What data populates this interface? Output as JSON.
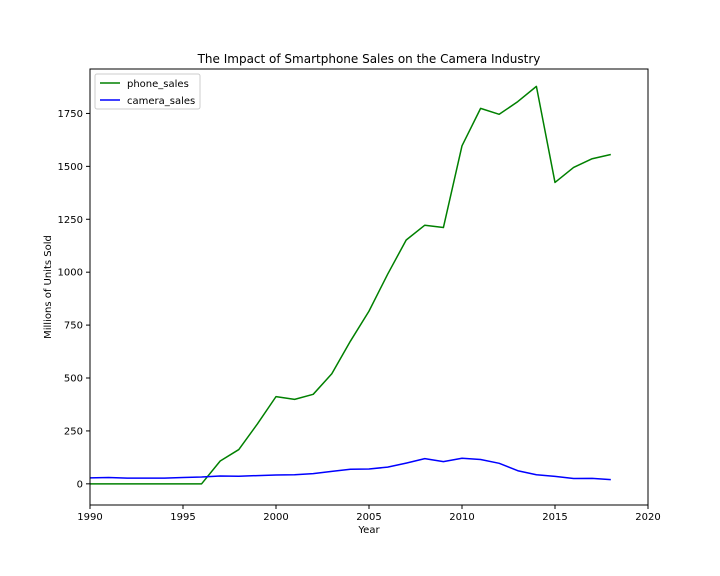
{
  "chart_data": {
    "type": "line",
    "title": "The Impact of Smartphone Sales on the Camera Industry",
    "xlabel": "Year",
    "ylabel": "Millions of Units Sold",
    "xlim": [
      1990,
      2020
    ],
    "ylim": [
      -100,
      1960
    ],
    "x_ticks": [
      1990,
      1995,
      2000,
      2005,
      2010,
      2015,
      2020
    ],
    "y_ticks": [
      0,
      250,
      500,
      750,
      1000,
      1250,
      1500,
      1750
    ],
    "grid": false,
    "legend_position": "upper-left",
    "x": [
      1990,
      1991,
      1992,
      1993,
      1994,
      1995,
      1996,
      1997,
      1998,
      1999,
      2000,
      2001,
      2002,
      2003,
      2004,
      2005,
      2006,
      2007,
      2008,
      2009,
      2010,
      2011,
      2012,
      2013,
      2014,
      2015,
      2016,
      2017,
      2018
    ],
    "series": [
      {
        "name": "phone_sales",
        "color": "#008000",
        "values": [
          0,
          0,
          0,
          0,
          0,
          0,
          0,
          108,
          162,
          283,
          412,
          399,
          423,
          520,
          674,
          816,
          990,
          1152,
          1222,
          1211,
          1597,
          1774,
          1746,
          1806,
          1878,
          1424,
          1495,
          1536,
          1556
        ]
      },
      {
        "name": "camera_sales",
        "color": "#0000ff",
        "values": [
          28,
          30,
          27,
          27,
          27,
          30,
          32,
          37,
          36,
          39,
          42,
          43,
          48,
          59,
          69,
          70,
          79,
          98,
          119,
          105,
          121,
          115,
          97,
          62,
          43,
          35,
          25,
          26,
          20
        ]
      }
    ]
  }
}
